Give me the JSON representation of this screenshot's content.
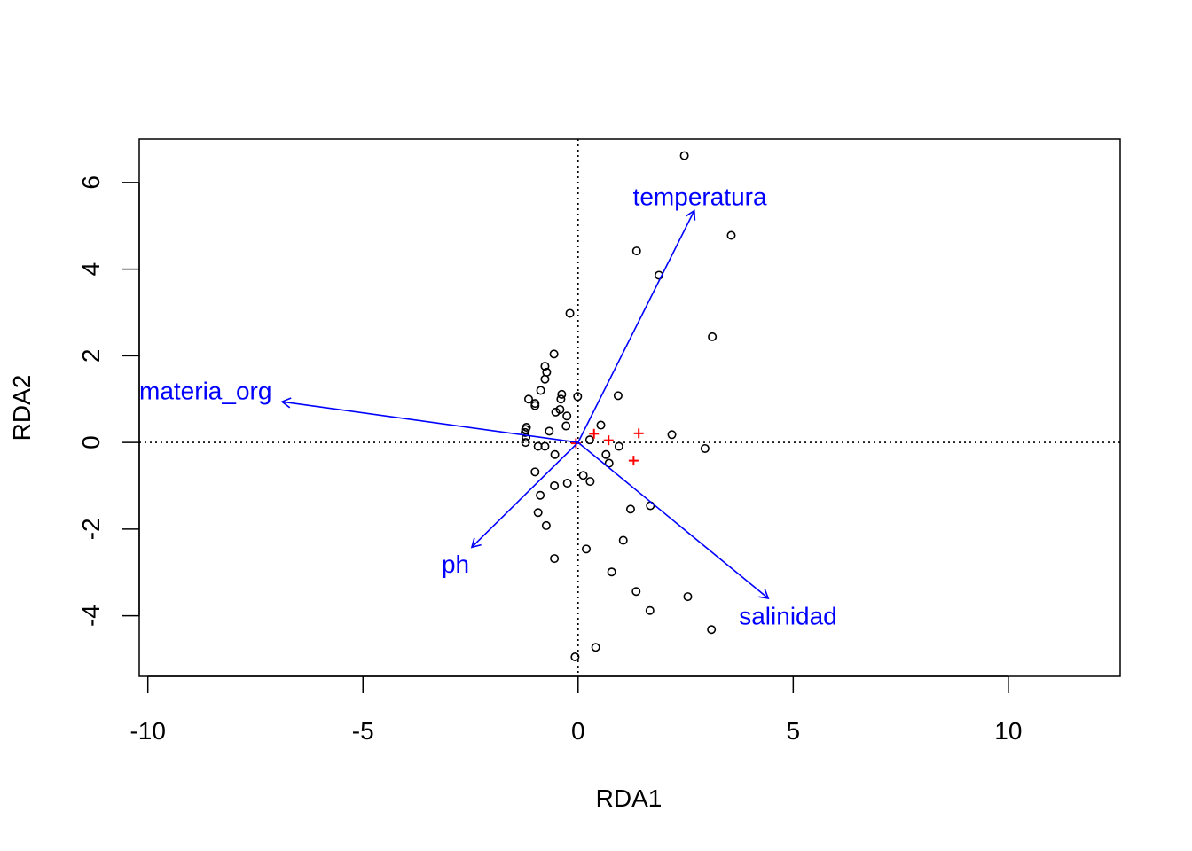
{
  "chart_data": {
    "type": "scatter",
    "title": "",
    "xlabel": "RDA1",
    "ylabel": "RDA2",
    "xlim": [
      -10.2,
      12.6
    ],
    "ylim": [
      -5.4,
      7.0
    ],
    "x_ticks": [
      {
        "value": -10,
        "label": "-10"
      },
      {
        "value": -5,
        "label": "-5"
      },
      {
        "value": 0,
        "label": "0"
      },
      {
        "value": 5,
        "label": "5"
      },
      {
        "value": 10,
        "label": "10"
      }
    ],
    "y_ticks": [
      {
        "value": -4,
        "label": "-4"
      },
      {
        "value": -2,
        "label": "-2"
      },
      {
        "value": 0,
        "label": "0"
      },
      {
        "value": 2,
        "label": "2"
      },
      {
        "value": 4,
        "label": "4"
      },
      {
        "value": 6,
        "label": "6"
      }
    ],
    "reference_lines": {
      "x": 0,
      "y": 0,
      "style": "dotted"
    },
    "colors": {
      "points": "#000000",
      "centroids": "#ff0000",
      "vectors": "#0000ff"
    },
    "points": [
      {
        "x": 2.47,
        "y": 6.62
      },
      {
        "x": 3.56,
        "y": 4.78
      },
      {
        "x": 1.36,
        "y": 4.42
      },
      {
        "x": 1.88,
        "y": 3.86
      },
      {
        "x": 3.12,
        "y": 2.44
      },
      {
        "x": -0.19,
        "y": 2.98
      },
      {
        "x": -0.56,
        "y": 2.04
      },
      {
        "x": -0.77,
        "y": 1.76
      },
      {
        "x": -0.73,
        "y": 1.62
      },
      {
        "x": -0.77,
        "y": 1.46
      },
      {
        "x": -0.87,
        "y": 1.2
      },
      {
        "x": -0.38,
        "y": 1.11
      },
      {
        "x": -0.4,
        "y": 1.0
      },
      {
        "x": -0.01,
        "y": 1.06
      },
      {
        "x": 0.93,
        "y": 1.08
      },
      {
        "x": -1.15,
        "y": 1.0
      },
      {
        "x": -1.0,
        "y": 0.9
      },
      {
        "x": -1.0,
        "y": 0.85
      },
      {
        "x": -0.42,
        "y": 0.76
      },
      {
        "x": -0.52,
        "y": 0.7
      },
      {
        "x": -0.26,
        "y": 0.61
      },
      {
        "x": 0.53,
        "y": 0.4
      },
      {
        "x": -0.28,
        "y": 0.38
      },
      {
        "x": -1.2,
        "y": 0.35
      },
      {
        "x": -1.22,
        "y": 0.3
      },
      {
        "x": -0.67,
        "y": 0.26
      },
      {
        "x": -1.23,
        "y": 0.23
      },
      {
        "x": -1.21,
        "y": 0.12
      },
      {
        "x": 2.18,
        "y": 0.18
      },
      {
        "x": 0.27,
        "y": 0.06
      },
      {
        "x": -1.22,
        "y": 0.0
      },
      {
        "x": -0.93,
        "y": -0.09
      },
      {
        "x": -0.77,
        "y": -0.09
      },
      {
        "x": 0.95,
        "y": -0.09
      },
      {
        "x": 2.95,
        "y": -0.14
      },
      {
        "x": -0.54,
        "y": -0.28
      },
      {
        "x": 0.65,
        "y": -0.28
      },
      {
        "x": 0.72,
        "y": -0.48
      },
      {
        "x": -1.0,
        "y": -0.68
      },
      {
        "x": 0.12,
        "y": -0.76
      },
      {
        "x": 0.28,
        "y": -0.9
      },
      {
        "x": -0.25,
        "y": -0.94
      },
      {
        "x": -0.55,
        "y": -1.0
      },
      {
        "x": -0.88,
        "y": -1.22
      },
      {
        "x": 1.68,
        "y": -1.46
      },
      {
        "x": 1.22,
        "y": -1.54
      },
      {
        "x": -0.93,
        "y": -1.62
      },
      {
        "x": -0.74,
        "y": -1.92
      },
      {
        "x": 1.05,
        "y": -2.26
      },
      {
        "x": 0.19,
        "y": -2.46
      },
      {
        "x": -0.55,
        "y": -2.68
      },
      {
        "x": 0.78,
        "y": -2.99
      },
      {
        "x": 1.35,
        "y": -3.44
      },
      {
        "x": 2.55,
        "y": -3.56
      },
      {
        "x": 1.67,
        "y": -3.88
      },
      {
        "x": 3.1,
        "y": -4.32
      },
      {
        "x": 0.41,
        "y": -4.73
      },
      {
        "x": -0.07,
        "y": -4.95
      }
    ],
    "centroids": [
      {
        "x": -0.05,
        "y": -0.02
      },
      {
        "x": 0.37,
        "y": 0.2
      },
      {
        "x": 0.71,
        "y": 0.05
      },
      {
        "x": 1.41,
        "y": 0.21
      },
      {
        "x": 1.29,
        "y": -0.42
      }
    ],
    "vectors": [
      {
        "name": "temperatura",
        "x": 2.7,
        "y": 5.35,
        "label_x": 2.83,
        "label_y": 5.68,
        "anchor": "middle"
      },
      {
        "name": "materia_org",
        "x": -6.88,
        "y": 0.94,
        "label_x": -10.2,
        "label_y": 1.2,
        "anchor": "start"
      },
      {
        "name": "ph",
        "x": -2.47,
        "y": -2.42,
        "label_x": -2.85,
        "label_y": -2.8,
        "anchor": "middle"
      },
      {
        "name": "salinidad",
        "x": 4.42,
        "y": -3.6,
        "label_x": 4.88,
        "label_y": -4.0,
        "anchor": "middle"
      }
    ]
  }
}
